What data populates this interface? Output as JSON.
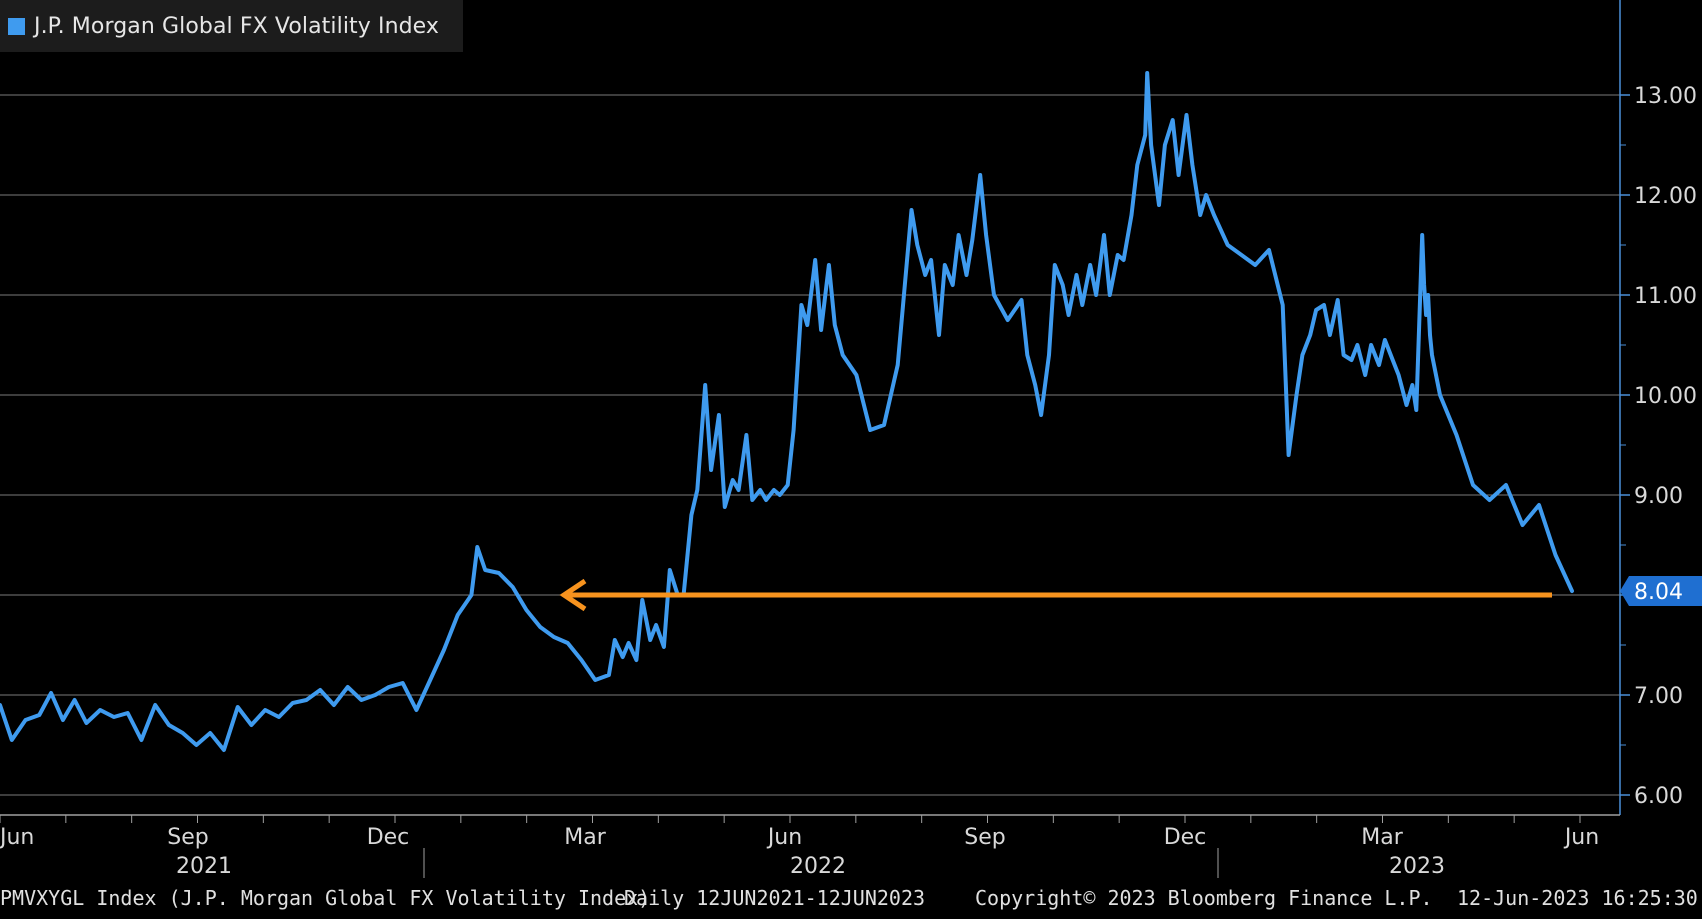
{
  "chart_data": {
    "type": "line",
    "title": "J.P. Morgan Global FX Volatility Index",
    "series": [
      {
        "name": "J.P. Morgan Global FX Volatility Index",
        "color": "#3f9bef",
        "points": [
          [
            "2021-06-12",
            6.9
          ],
          [
            "2021-06-18",
            6.55
          ],
          [
            "2021-06-25",
            6.75
          ],
          [
            "2021-07-02",
            6.8
          ],
          [
            "2021-07-08",
            7.02
          ],
          [
            "2021-07-14",
            6.75
          ],
          [
            "2021-07-20",
            6.95
          ],
          [
            "2021-07-26",
            6.72
          ],
          [
            "2021-08-02",
            6.85
          ],
          [
            "2021-08-09",
            6.78
          ],
          [
            "2021-08-16",
            6.82
          ],
          [
            "2021-08-23",
            6.55
          ],
          [
            "2021-08-30",
            6.9
          ],
          [
            "2021-09-06",
            6.7
          ],
          [
            "2021-09-13",
            6.62
          ],
          [
            "2021-09-20",
            6.5
          ],
          [
            "2021-09-27",
            6.62
          ],
          [
            "2021-10-04",
            6.45
          ],
          [
            "2021-10-11",
            6.88
          ],
          [
            "2021-10-18",
            6.7
          ],
          [
            "2021-10-25",
            6.85
          ],
          [
            "2021-11-01",
            6.78
          ],
          [
            "2021-11-08",
            6.92
          ],
          [
            "2021-11-15",
            6.95
          ],
          [
            "2021-11-22",
            7.05
          ],
          [
            "2021-11-29",
            6.9
          ],
          [
            "2021-12-06",
            7.08
          ],
          [
            "2021-12-13",
            6.95
          ],
          [
            "2021-12-20",
            7.0
          ],
          [
            "2021-12-27",
            7.08
          ],
          [
            "2022-01-03",
            7.12
          ],
          [
            "2022-01-10",
            6.85
          ],
          [
            "2022-01-17",
            7.15
          ],
          [
            "2022-01-24",
            7.45
          ],
          [
            "2022-01-31",
            7.8
          ],
          [
            "2022-02-07",
            8.0
          ],
          [
            "2022-02-10",
            8.48
          ],
          [
            "2022-02-14",
            8.25
          ],
          [
            "2022-02-21",
            8.22
          ],
          [
            "2022-02-28",
            8.08
          ],
          [
            "2022-03-07",
            7.85
          ],
          [
            "2022-03-14",
            7.68
          ],
          [
            "2022-03-21",
            7.58
          ],
          [
            "2022-03-28",
            7.52
          ],
          [
            "2022-04-04",
            7.35
          ],
          [
            "2022-04-11",
            7.15
          ],
          [
            "2022-04-18",
            7.2
          ],
          [
            "2022-04-21",
            7.55
          ],
          [
            "2022-04-25",
            7.38
          ],
          [
            "2022-04-28",
            7.52
          ],
          [
            "2022-05-02",
            7.35
          ],
          [
            "2022-05-05",
            7.95
          ],
          [
            "2022-05-09",
            7.55
          ],
          [
            "2022-05-12",
            7.7
          ],
          [
            "2022-05-16",
            7.48
          ],
          [
            "2022-05-19",
            8.25
          ],
          [
            "2022-05-23",
            8.0
          ],
          [
            "2022-05-26",
            8.0
          ],
          [
            "2022-05-30",
            8.8
          ],
          [
            "2022-06-02",
            9.05
          ],
          [
            "2022-06-06",
            10.1
          ],
          [
            "2022-06-09",
            9.25
          ],
          [
            "2022-06-13",
            9.8
          ],
          [
            "2022-06-16",
            8.88
          ],
          [
            "2022-06-20",
            9.15
          ],
          [
            "2022-06-23",
            9.05
          ],
          [
            "2022-06-27",
            9.6
          ],
          [
            "2022-06-30",
            8.95
          ],
          [
            "2022-07-04",
            9.05
          ],
          [
            "2022-07-07",
            8.95
          ],
          [
            "2022-07-11",
            9.05
          ],
          [
            "2022-07-14",
            9.0
          ],
          [
            "2022-07-18",
            9.1
          ],
          [
            "2022-07-21",
            9.65
          ],
          [
            "2022-07-25",
            10.9
          ],
          [
            "2022-07-28",
            10.7
          ],
          [
            "2022-08-01",
            11.35
          ],
          [
            "2022-08-04",
            10.65
          ],
          [
            "2022-08-08",
            11.3
          ],
          [
            "2022-08-11",
            10.7
          ],
          [
            "2022-08-15",
            10.4
          ],
          [
            "2022-08-22",
            10.2
          ],
          [
            "2022-08-29",
            9.65
          ],
          [
            "2022-09-05",
            9.7
          ],
          [
            "2022-09-12",
            10.3
          ],
          [
            "2022-09-19",
            11.85
          ],
          [
            "2022-09-22",
            11.5
          ],
          [
            "2022-09-26",
            11.2
          ],
          [
            "2022-09-29",
            11.35
          ],
          [
            "2022-10-03",
            10.6
          ],
          [
            "2022-10-06",
            11.3
          ],
          [
            "2022-10-10",
            11.1
          ],
          [
            "2022-10-13",
            11.6
          ],
          [
            "2022-10-17",
            11.2
          ],
          [
            "2022-10-20",
            11.55
          ],
          [
            "2022-10-24",
            12.2
          ],
          [
            "2022-10-27",
            11.6
          ],
          [
            "2022-10-31",
            11.0
          ],
          [
            "2022-11-07",
            10.75
          ],
          [
            "2022-11-14",
            10.95
          ],
          [
            "2022-11-17",
            10.4
          ],
          [
            "2022-11-21",
            10.1
          ],
          [
            "2022-11-24",
            9.8
          ],
          [
            "2022-11-28",
            10.4
          ],
          [
            "2022-12-01",
            11.3
          ],
          [
            "2022-12-05",
            11.1
          ],
          [
            "2022-12-08",
            10.8
          ],
          [
            "2022-12-12",
            11.2
          ],
          [
            "2022-12-15",
            10.9
          ],
          [
            "2022-12-19",
            11.3
          ],
          [
            "2022-12-22",
            11.0
          ],
          [
            "2022-12-26",
            11.6
          ],
          [
            "2022-12-29",
            11.0
          ],
          [
            "2023-01-02",
            11.4
          ],
          [
            "2023-01-05",
            11.35
          ],
          [
            "2023-01-09",
            11.8
          ],
          [
            "2023-01-12",
            12.3
          ],
          [
            "2023-01-16",
            12.6
          ],
          [
            "2023-01-17",
            13.22
          ],
          [
            "2023-01-19",
            12.5
          ],
          [
            "2023-01-23",
            11.9
          ],
          [
            "2023-01-26",
            12.5
          ],
          [
            "2023-01-30",
            12.75
          ],
          [
            "2023-02-02",
            12.2
          ],
          [
            "2023-02-06",
            12.8
          ],
          [
            "2023-02-09",
            12.3
          ],
          [
            "2023-02-13",
            11.8
          ],
          [
            "2023-02-16",
            12.0
          ],
          [
            "2023-02-20",
            11.8
          ],
          [
            "2023-02-27",
            11.5
          ],
          [
            "2023-03-06",
            11.4
          ],
          [
            "2023-03-13",
            11.3
          ],
          [
            "2023-03-20",
            11.45
          ],
          [
            "2023-03-27",
            10.9
          ],
          [
            "2023-03-30",
            9.4
          ],
          [
            "2023-04-03",
            10.0
          ],
          [
            "2023-04-06",
            10.4
          ],
          [
            "2023-04-10",
            10.6
          ],
          [
            "2023-04-13",
            10.85
          ],
          [
            "2023-04-17",
            10.9
          ],
          [
            "2023-04-20",
            10.6
          ],
          [
            "2023-04-24",
            10.95
          ],
          [
            "2023-04-27",
            10.4
          ],
          [
            "2023-05-01",
            10.35
          ],
          [
            "2023-05-04",
            10.5
          ],
          [
            "2023-05-08",
            10.2
          ],
          [
            "2023-05-11",
            10.5
          ],
          [
            "2023-05-15",
            10.3
          ],
          [
            "2023-05-18",
            10.55
          ],
          [
            "2023-05-22",
            10.35
          ],
          [
            "2023-05-25",
            10.2
          ],
          [
            "2023-05-29",
            9.9
          ],
          [
            "2023-06-01",
            10.1
          ],
          [
            "2023-06-03",
            9.85
          ],
          [
            "2023-06-05",
            11.0
          ],
          [
            "2023-06-06",
            11.6
          ],
          [
            "2023-06-07",
            11.1
          ],
          [
            "2023-06-08",
            10.8
          ],
          [
            "2023-06-09",
            11.0
          ],
          [
            "2023-06-10",
            10.6
          ],
          [
            "2023-06-11",
            10.4
          ],
          [
            "2023-06-12",
            10.0
          ],
          [
            "2023-06-12",
            9.6
          ],
          [
            "2023-06-12",
            9.1
          ],
          [
            "2023-06-12",
            8.95
          ],
          [
            "2023-06-12",
            9.1
          ],
          [
            "2023-06-12",
            8.7
          ],
          [
            "2023-06-12",
            8.9
          ],
          [
            "2023-06-12",
            8.4
          ],
          [
            "2023-06-12",
            8.04
          ]
        ]
      }
    ],
    "y_ticks": [
      "6.00",
      "7.00",
      "8.00",
      "9.00",
      "10.00",
      "11.00",
      "12.00",
      "13.00"
    ],
    "ylim": [
      5.8,
      13.95
    ],
    "x_months": [
      "Jun",
      "Sep",
      "Dec",
      "Mar",
      "Jun",
      "Sep",
      "Dec",
      "Mar",
      "Jun"
    ],
    "x_years": [
      "2021",
      "2022",
      "2023"
    ],
    "last_value_label": "8.04",
    "last_value": 8.04,
    "grid": true,
    "legend_position": "top-left",
    "arrow_level": 8.0,
    "arrow_color": "#f7931e",
    "background": "#000000"
  },
  "footer": {
    "security": "PMVXYGL Index (J.P. Morgan Global FX Volatility Index)",
    "range": "Daily 12JUN2021-12JUN2023",
    "copyright": "Copyright© 2023 Bloomberg Finance L.P.",
    "timestamp": "12-Jun-2023 16:25:30"
  }
}
